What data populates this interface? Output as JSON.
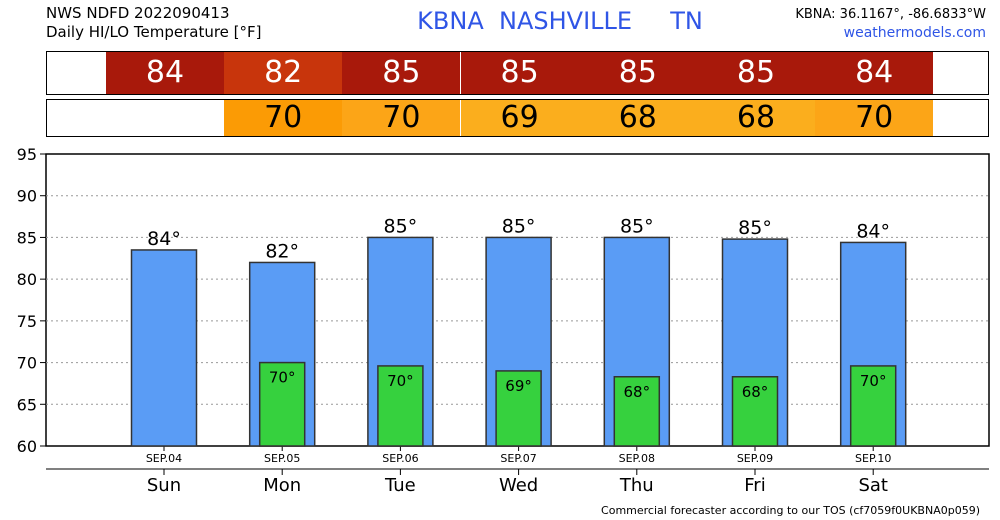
{
  "header": {
    "source_line": "NWS NDFD 2022090413",
    "subtitle": "Daily HI/LO Temperature [°F]",
    "station": "KBNA  NASHVILLE     TN",
    "coords": "KBNA: 36.1167°, -86.6833°W",
    "site": "weathermodels.com"
  },
  "colors": {
    "hi_bar": "#5a9cf5",
    "lo_bar": "#36d13e",
    "hi_strip": [
      "#a8190b",
      "#c8350c",
      "#a8190b",
      "#a8190b",
      "#a8190b",
      "#a8190b",
      "#a8190b"
    ],
    "lo_strip": [
      null,
      "#fb9b05",
      "#fca517",
      "#fbae1d",
      "#fbae1d",
      "#fbae1d",
      "#fca517"
    ]
  },
  "chart_data": {
    "type": "bar",
    "categories": [
      "Sun",
      "Mon",
      "Tue",
      "Wed",
      "Thu",
      "Fri",
      "Sat"
    ],
    "dates": [
      "SEP.04",
      "SEP.05",
      "SEP.06",
      "SEP.07",
      "SEP.08",
      "SEP.09",
      "SEP.10"
    ],
    "series": [
      {
        "values": [
          83.5,
          82.0,
          85.0,
          85.0,
          85.0,
          84.8,
          84.4
        ],
        "labels": [
          "84",
          "82",
          "85",
          "85",
          "85",
          "85",
          "84"
        ]
      },
      {
        "values": [
          null,
          70.0,
          69.6,
          69.0,
          68.3,
          68.3,
          69.6
        ],
        "labels": [
          null,
          "70",
          "70",
          "69",
          "68",
          "68",
          "70"
        ]
      }
    ],
    "ylim": [
      60,
      95
    ],
    "yticks": [
      60,
      65,
      70,
      75,
      80,
      85,
      90,
      95
    ],
    "grid": true,
    "degree_symbol": "°"
  },
  "footer": "Commercial forecaster according to our TOS (cf7059f0UKBNA0p059)"
}
